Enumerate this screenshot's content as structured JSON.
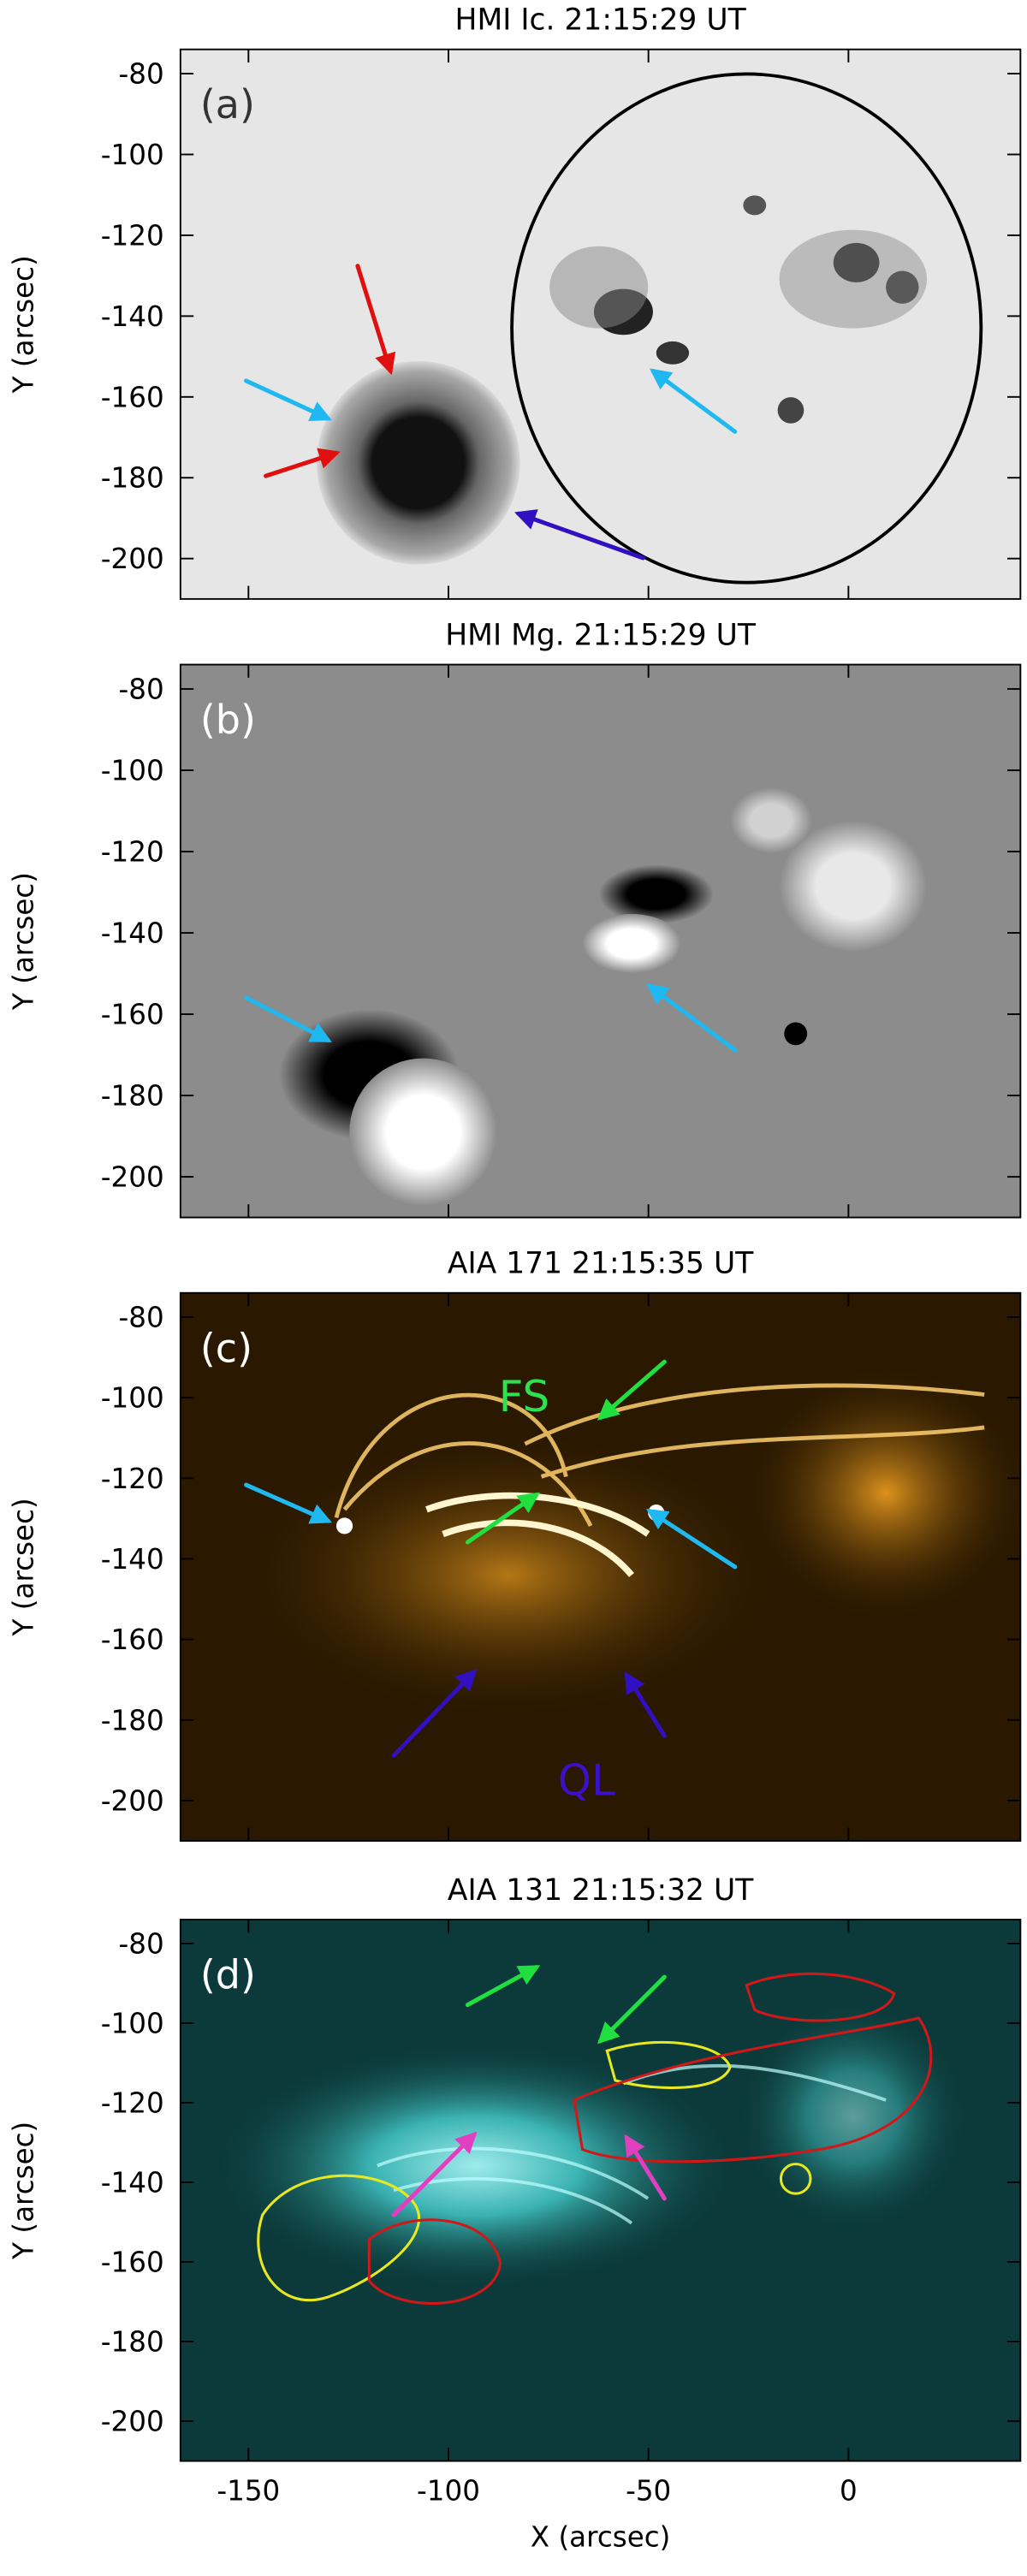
{
  "chart_data": [
    {
      "type": "image",
      "title": "HMI Ic. 21:15:29 UT",
      "panel_label": "(a)",
      "ylabel": "Y (arcsec)",
      "ylim": [
        -210,
        -74
      ],
      "yticks": [
        -80,
        -100,
        -120,
        -140,
        -160,
        -180,
        -200
      ]
    },
    {
      "type": "image",
      "title": "HMI Mg. 21:15:29 UT",
      "panel_label": "(b)",
      "ylabel": "Y (arcsec)",
      "ylim": [
        -210,
        -74
      ],
      "yticks": [
        -80,
        -100,
        -120,
        -140,
        -160,
        -180,
        -200
      ]
    },
    {
      "type": "image",
      "title": "AIA 171  21:15:35 UT",
      "panel_label": "(c)",
      "ylabel": "Y (arcsec)",
      "ylim": [
        -210,
        -74
      ],
      "yticks": [
        -80,
        -100,
        -120,
        -140,
        -160,
        -180,
        -200
      ],
      "annotations": [
        "FS",
        "QL"
      ]
    },
    {
      "type": "image",
      "title": "AIA 131  21:15:32 UT",
      "panel_label": "(d)",
      "ylabel": "Y (arcsec)",
      "xlabel": "X (arcsec)",
      "ylim": [
        -210,
        -74
      ],
      "yticks": [
        -80,
        -100,
        -120,
        -140,
        -160,
        -180,
        -200
      ],
      "xlim": [
        -167,
        43
      ],
      "xticks": [
        -150,
        -100,
        -50,
        0
      ]
    }
  ]
}
